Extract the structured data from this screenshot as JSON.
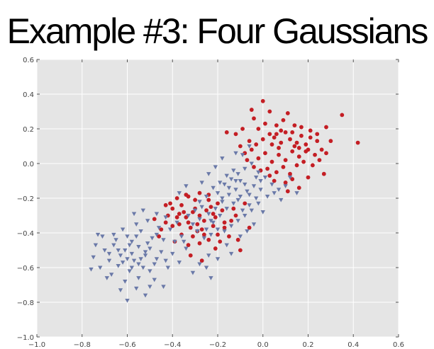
{
  "title": "Example #3: Four Gaussians",
  "colors": {
    "background": "#e5e5e5",
    "grid": "#ffffff",
    "series_a": "#c41e24",
    "series_b": "#6a79a8"
  },
  "chart_data": {
    "type": "scatter",
    "title": "",
    "xlabel": "",
    "ylabel": "",
    "xlim": [
      -1.0,
      0.6
    ],
    "ylim": [
      -1.0,
      0.6
    ],
    "xticks": [
      "−1.0",
      "−0.8",
      "−0.6",
      "−0.4",
      "−0.2",
      "0.0",
      "0.2",
      "0.4",
      "0.6"
    ],
    "yticks": [
      "−1.0",
      "−0.8",
      "−0.6",
      "−0.4",
      "−0.2",
      "0.0",
      "0.2",
      "0.4",
      "0.6"
    ],
    "grid": true,
    "legend": "none",
    "series": [
      {
        "marker": "circle",
        "color": "#c41e24",
        "points": [
          [
            -0.41,
            -0.23
          ],
          [
            -0.43,
            -0.24
          ],
          [
            -0.33,
            -0.19
          ],
          [
            -0.28,
            -0.17
          ],
          [
            -0.3,
            -0.21
          ],
          [
            -0.24,
            -0.18
          ],
          [
            -0.2,
            -0.23
          ],
          [
            -0.35,
            -0.28
          ],
          [
            -0.38,
            -0.31
          ],
          [
            -0.33,
            -0.34
          ],
          [
            -0.28,
            -0.3
          ],
          [
            -0.25,
            -0.27
          ],
          [
            -0.21,
            -0.31
          ],
          [
            -0.18,
            -0.27
          ],
          [
            -0.22,
            -0.36
          ],
          [
            -0.27,
            -0.38
          ],
          [
            -0.31,
            -0.42
          ],
          [
            -0.36,
            -0.41
          ],
          [
            -0.4,
            -0.36
          ],
          [
            -0.43,
            -0.34
          ],
          [
            -0.46,
            -0.42
          ],
          [
            -0.2,
            -0.41
          ],
          [
            -0.17,
            -0.37
          ],
          [
            -0.14,
            -0.33
          ],
          [
            -0.12,
            -0.3
          ],
          [
            -0.28,
            -0.46
          ],
          [
            -0.24,
            -0.44
          ],
          [
            -0.21,
            -0.49
          ],
          [
            -0.33,
            -0.47
          ],
          [
            -0.37,
            -0.29
          ],
          [
            -0.39,
            -0.45
          ],
          [
            -0.15,
            -0.42
          ],
          [
            -0.3,
            -0.26
          ],
          [
            -0.26,
            -0.33
          ],
          [
            -0.23,
            -0.25
          ],
          [
            -0.42,
            -0.3
          ],
          [
            -0.36,
            -0.24
          ],
          [
            -0.32,
            -0.37
          ],
          [
            -0.17,
            -0.34
          ],
          [
            -0.19,
            -0.45
          ],
          [
            -0.26,
            -0.41
          ],
          [
            -0.34,
            -0.31
          ],
          [
            -0.22,
            -0.29
          ],
          [
            -0.29,
            -0.35
          ],
          [
            -0.31,
            -0.28
          ],
          [
            -0.24,
            -0.21
          ],
          [
            -0.37,
            -0.35
          ],
          [
            -0.4,
            -0.26
          ],
          [
            -0.45,
            -0.38
          ],
          [
            -0.48,
            -0.32
          ],
          [
            -0.27,
            -0.56
          ],
          [
            -0.32,
            -0.53
          ],
          [
            -0.1,
            -0.5
          ],
          [
            -0.11,
            -0.44
          ],
          [
            -0.06,
            -0.37
          ],
          [
            -0.13,
            -0.26
          ],
          [
            -0.08,
            -0.23
          ],
          [
            -0.34,
            -0.18
          ],
          [
            -0.38,
            -0.2
          ],
          [
            -0.29,
            -0.39
          ],
          [
            0.0,
            0.14
          ],
          [
            0.03,
            0.17
          ],
          [
            0.05,
            0.15
          ],
          [
            0.08,
            0.12
          ],
          [
            0.1,
            0.18
          ],
          [
            0.12,
            0.14
          ],
          [
            0.15,
            0.12
          ],
          [
            0.17,
            0.16
          ],
          [
            0.19,
            0.11
          ],
          [
            0.21,
            0.15
          ],
          [
            0.24,
            0.13
          ],
          [
            0.26,
            0.08
          ],
          [
            0.23,
            0.05
          ],
          [
            0.2,
            0.08
          ],
          [
            0.16,
            0.04
          ],
          [
            0.13,
            0.07
          ],
          [
            0.1,
            0.02
          ],
          [
            0.07,
            0.05
          ],
          [
            0.04,
            0.01
          ],
          [
            0.01,
            0.06
          ],
          [
            -0.02,
            0.03
          ],
          [
            -0.05,
            0.08
          ],
          [
            -0.07,
            0.02
          ],
          [
            -0.04,
            -0.02
          ],
          [
            0.02,
            -0.03
          ],
          [
            0.06,
            -0.05
          ],
          [
            0.09,
            -0.02
          ],
          [
            0.12,
            -0.06
          ],
          [
            0.15,
            -0.01
          ],
          [
            0.18,
            0.01
          ],
          [
            0.22,
            -0.01
          ],
          [
            0.25,
            0.02
          ],
          [
            0.28,
            0.06
          ],
          [
            0.14,
            0.22
          ],
          [
            0.09,
            0.25
          ],
          [
            0.06,
            0.22
          ],
          [
            0.11,
            0.29
          ],
          [
            0.03,
            0.3
          ],
          [
            -0.04,
            0.26
          ],
          [
            -0.09,
            0.2
          ],
          [
            -0.12,
            0.17
          ],
          [
            -0.16,
            0.18
          ],
          [
            -0.06,
            0.13
          ],
          [
            -0.02,
            0.2
          ],
          [
            0.01,
            0.23
          ],
          [
            0.07,
            0.09
          ],
          [
            0.13,
            0.18
          ],
          [
            0.17,
            0.21
          ],
          [
            0.0,
            0.36
          ],
          [
            -0.05,
            0.31
          ],
          [
            0.35,
            0.28
          ],
          [
            0.42,
            0.12
          ],
          [
            0.28,
            0.21
          ],
          [
            0.3,
            0.13
          ],
          [
            0.27,
            -0.06
          ],
          [
            0.2,
            -0.08
          ],
          [
            0.1,
            -0.11
          ],
          [
            0.05,
            -0.1
          ],
          [
            0.16,
            -0.14
          ],
          [
            0.11,
            -0.16
          ],
          [
            -0.01,
            -0.04
          ],
          [
            -0.03,
            0.11
          ],
          [
            0.08,
            0.19
          ],
          [
            0.19,
            0.07
          ],
          [
            0.14,
            0.1
          ],
          [
            0.04,
            0.11
          ],
          [
            -0.08,
            0.06
          ],
          [
            0.21,
            0.19
          ],
          [
            0.24,
            0.17
          ],
          [
            0.03,
            -0.07
          ],
          [
            -0.1,
            0.1
          ],
          [
            0.13,
            -0.09
          ],
          [
            0.06,
            0.17
          ],
          [
            0.16,
            0.09
          ]
        ]
      },
      {
        "marker": "triangle-down",
        "color": "#6a79a8",
        "points": [
          [
            -0.58,
            -0.45
          ],
          [
            -0.61,
            -0.5
          ],
          [
            -0.55,
            -0.48
          ],
          [
            -0.52,
            -0.53
          ],
          [
            -0.57,
            -0.56
          ],
          [
            -0.63,
            -0.53
          ],
          [
            -0.66,
            -0.47
          ],
          [
            -0.6,
            -0.42
          ],
          [
            -0.54,
            -0.39
          ],
          [
            -0.49,
            -0.43
          ],
          [
            -0.5,
            -0.49
          ],
          [
            -0.47,
            -0.55
          ],
          [
            -0.53,
            -0.6
          ],
          [
            -0.59,
            -0.62
          ],
          [
            -0.64,
            -0.59
          ],
          [
            -0.68,
            -0.56
          ],
          [
            -0.7,
            -0.5
          ],
          [
            -0.65,
            -0.44
          ],
          [
            -0.62,
            -0.38
          ],
          [
            -0.56,
            -0.35
          ],
          [
            -0.51,
            -0.33
          ],
          [
            -0.46,
            -0.37
          ],
          [
            -0.44,
            -0.44
          ],
          [
            -0.45,
            -0.51
          ],
          [
            -0.48,
            -0.58
          ],
          [
            -0.55,
            -0.66
          ],
          [
            -0.61,
            -0.68
          ],
          [
            -0.67,
            -0.64
          ],
          [
            -0.72,
            -0.6
          ],
          [
            -0.75,
            -0.54
          ],
          [
            -0.74,
            -0.47
          ],
          [
            -0.71,
            -0.42
          ],
          [
            -0.76,
            -0.61
          ],
          [
            -0.56,
            -0.72
          ],
          [
            -0.6,
            -0.79
          ],
          [
            -0.52,
            -0.76
          ],
          [
            -0.48,
            -0.67
          ],
          [
            -0.42,
            -0.6
          ],
          [
            -0.4,
            -0.52
          ],
          [
            -0.39,
            -0.45
          ],
          [
            -0.41,
            -0.38
          ],
          [
            -0.43,
            -0.31
          ],
          [
            -0.47,
            -0.29
          ],
          [
            -0.38,
            -0.34
          ],
          [
            -0.36,
            -0.42
          ],
          [
            -0.34,
            -0.49
          ],
          [
            -0.37,
            -0.57
          ],
          [
            -0.44,
            -0.71
          ],
          [
            -0.5,
            -0.71
          ],
          [
            -0.63,
            -0.73
          ],
          [
            -0.69,
            -0.66
          ],
          [
            -0.66,
            -0.41
          ],
          [
            -0.73,
            -0.41
          ],
          [
            -0.57,
            -0.29
          ],
          [
            -0.53,
            -0.27
          ],
          [
            -0.58,
            -0.52
          ],
          [
            -0.62,
            -0.57
          ],
          [
            -0.54,
            -0.55
          ],
          [
            -0.59,
            -0.47
          ],
          [
            -0.51,
            -0.46
          ],
          [
            -0.47,
            -0.41
          ],
          [
            -0.56,
            -0.42
          ],
          [
            -0.64,
            -0.5
          ],
          [
            -0.58,
            -0.6
          ],
          [
            -0.5,
            -0.62
          ],
          [
            -0.43,
            -0.56
          ],
          [
            -0.68,
            -0.52
          ],
          [
            -0.52,
            -0.51
          ],
          [
            -0.6,
            -0.55
          ],
          [
            -0.55,
            -0.58
          ],
          [
            -0.31,
            -0.35
          ],
          [
            -0.28,
            -0.32
          ],
          [
            -0.25,
            -0.38
          ],
          [
            -0.22,
            -0.34
          ],
          [
            -0.19,
            -0.3
          ],
          [
            -0.16,
            -0.26
          ],
          [
            -0.13,
            -0.23
          ],
          [
            -0.1,
            -0.19
          ],
          [
            -0.07,
            -0.16
          ],
          [
            -0.04,
            -0.13
          ],
          [
            -0.01,
            -0.1
          ],
          [
            -0.03,
            -0.2
          ],
          [
            -0.06,
            -0.24
          ],
          [
            -0.09,
            -0.27
          ],
          [
            -0.12,
            -0.15
          ],
          [
            -0.15,
            -0.18
          ],
          [
            -0.18,
            -0.22
          ],
          [
            -0.21,
            -0.26
          ],
          [
            -0.24,
            -0.29
          ],
          [
            -0.27,
            -0.25
          ],
          [
            -0.2,
            -0.17
          ],
          [
            -0.17,
            -0.12
          ],
          [
            -0.14,
            -0.09
          ],
          [
            -0.11,
            -0.06
          ],
          [
            -0.08,
            -0.03
          ],
          [
            -0.05,
            0.0
          ],
          [
            -0.02,
            -0.05
          ],
          [
            0.01,
            -0.08
          ],
          [
            0.04,
            -0.12
          ],
          [
            0.07,
            -0.15
          ],
          [
            0.1,
            -0.13
          ],
          [
            -0.1,
            -0.1
          ],
          [
            -0.13,
            -0.04
          ],
          [
            -0.16,
            -0.07
          ],
          [
            -0.19,
            -0.11
          ],
          [
            -0.22,
            -0.14
          ],
          [
            -0.25,
            -0.19
          ],
          [
            -0.28,
            -0.22
          ],
          [
            -0.3,
            -0.27
          ],
          [
            -0.33,
            -0.3
          ],
          [
            -0.26,
            -0.43
          ],
          [
            -0.23,
            -0.41
          ],
          [
            -0.2,
            -0.38
          ],
          [
            -0.17,
            -0.39
          ],
          [
            -0.14,
            -0.36
          ],
          [
            -0.11,
            -0.33
          ],
          [
            -0.08,
            -0.3
          ],
          [
            -0.05,
            -0.27
          ],
          [
            -0.02,
            -0.23
          ],
          [
            0.02,
            -0.19
          ],
          [
            0.05,
            -0.17
          ],
          [
            0.08,
            -0.21
          ],
          [
            -0.07,
            -0.39
          ],
          [
            -0.1,
            -0.42
          ],
          [
            -0.04,
            -0.35
          ],
          [
            -0.16,
            -0.47
          ],
          [
            -0.24,
            -0.53
          ],
          [
            -0.28,
            -0.58
          ],
          [
            -0.25,
            -0.6
          ],
          [
            -0.23,
            -0.66
          ],
          [
            -0.31,
            -0.63
          ],
          [
            -0.12,
            -0.1
          ],
          [
            -0.09,
            0.05
          ],
          [
            -0.06,
            0.1
          ],
          [
            -0.12,
            0.06
          ],
          [
            -0.18,
            0.03
          ],
          [
            -0.21,
            -0.02
          ],
          [
            -0.24,
            -0.06
          ],
          [
            -0.27,
            -0.11
          ],
          [
            -0.34,
            -0.13
          ],
          [
            -0.37,
            -0.17
          ],
          [
            -0.2,
            -0.55
          ],
          [
            -0.14,
            -0.52
          ],
          [
            -0.01,
            -0.15
          ],
          [
            0.0,
            -0.28
          ],
          [
            0.12,
            -0.08
          ],
          [
            0.15,
            -0.17
          ],
          [
            -0.15,
            -0.14
          ],
          [
            -0.18,
            -0.2
          ],
          [
            -0.08,
            -0.12
          ],
          [
            -0.03,
            -0.08
          ],
          [
            -0.11,
            -0.21
          ],
          [
            -0.06,
            -0.18
          ],
          [
            -0.23,
            -0.33
          ],
          [
            -0.29,
            -0.39
          ],
          [
            -0.35,
            -0.45
          ]
        ]
      }
    ]
  }
}
